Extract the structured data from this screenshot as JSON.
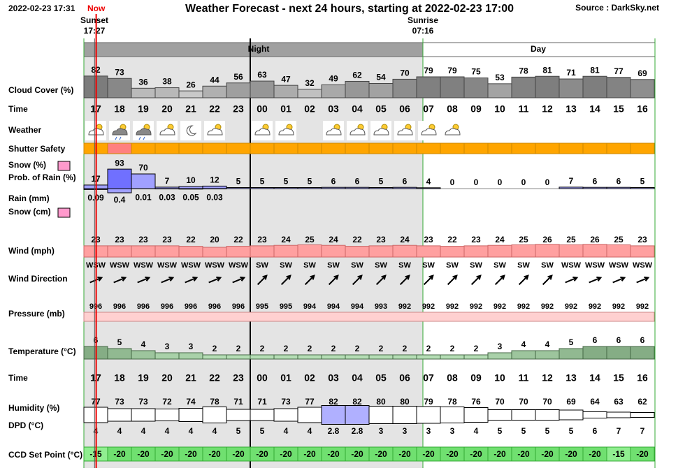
{
  "header": {
    "timestamp": "2022-02-23 17:31",
    "now_label": "Now",
    "title": "Weather Forecast - next 24 hours, starting at 2022-02-23 17:00",
    "source": "Source : DarkSky.net"
  },
  "sun": {
    "sunset_label": "Sunset",
    "sunset_time": "17:27",
    "sunrise_label": "Sunrise",
    "sunrise_time": "07:16"
  },
  "bands": {
    "night": "Night",
    "day": "Day"
  },
  "row_labels": {
    "cloud": "Cloud Cover (%)",
    "time": "Time",
    "weather": "Weather",
    "shutter": "Shutter Safety",
    "snow_pct": "Snow (%)",
    "prob_rain": "Prob. of Rain (%)",
    "rain": "Rain (mm)",
    "snow_cm": "Snow (cm)",
    "wind": "Wind (mph)",
    "wind_dir": "Wind Direction",
    "pressure": "Pressure (mb)",
    "temperature": "Temperature (°C)",
    "time2": "Time",
    "humidity": "Humidity (%)",
    "dpd": "DPD (°C)",
    "ccd": "CCD Set Point (°C)"
  },
  "hours": [
    "17",
    "18",
    "19",
    "20",
    "21",
    "22",
    "23",
    "00",
    "01",
    "02",
    "03",
    "04",
    "05",
    "06",
    "07",
    "08",
    "09",
    "10",
    "11",
    "12",
    "13",
    "14",
    "15",
    "16"
  ],
  "rows": {
    "cloud": [
      82,
      73,
      36,
      38,
      26,
      44,
      56,
      63,
      47,
      32,
      49,
      62,
      54,
      70,
      79,
      79,
      75,
      53,
      78,
      81,
      71,
      81,
      77,
      69
    ],
    "shutter_colors": [
      "#ffa500",
      "#ff8080",
      "#ffa500",
      "#ffa500",
      "#ffa500",
      "#ffa500",
      "#ffa500",
      "#ffa500",
      "#ffa500",
      "#ffa500",
      "#ffa500",
      "#ffa500",
      "#ffa500",
      "#ffa500",
      "#ffa500",
      "#ffa500",
      "#ffa500",
      "#ffa500",
      "#ffa500",
      "#ffa500",
      "#ffa500",
      "#ffa500",
      "#ffa500",
      "#ffa500"
    ],
    "prob_rain": [
      17,
      93,
      70,
      7,
      10,
      12,
      5,
      5,
      5,
      5,
      6,
      6,
      5,
      6,
      4,
      0,
      0,
      0,
      0,
      0,
      7,
      6,
      6,
      5
    ],
    "rain": [
      0.09,
      0.4,
      0.01,
      0.03,
      0.05,
      0.03
    ],
    "wind": [
      23,
      23,
      23,
      23,
      22,
      20,
      22,
      23,
      24,
      25,
      24,
      22,
      23,
      24,
      23,
      22,
      23,
      24,
      25,
      26,
      25,
      26,
      25,
      23
    ],
    "wind_dir": [
      "WSW",
      "WSW",
      "WSW",
      "WSW",
      "WSW",
      "WSW",
      "WSW",
      "SW",
      "SW",
      "SW",
      "SW",
      "SW",
      "SW",
      "SW",
      "SW",
      "SW",
      "SW",
      "SW",
      "SW",
      "SW",
      "WSW",
      "WSW",
      "WSW",
      "WSW"
    ],
    "pressure": [
      996,
      996,
      996,
      996,
      996,
      996,
      996,
      995,
      995,
      994,
      994,
      994,
      993,
      992,
      992,
      992,
      992,
      992,
      992,
      992,
      992,
      992,
      992,
      992
    ],
    "temperature": [
      6,
      5,
      4,
      3,
      3,
      2,
      2,
      2,
      2,
      2,
      2,
      2,
      2,
      2,
      2,
      2,
      2,
      3,
      4,
      4,
      5,
      6,
      6,
      6
    ],
    "humidity": [
      77,
      73,
      73,
      72,
      74,
      78,
      71,
      71,
      73,
      77,
      82,
      82,
      80,
      80,
      79,
      78,
      76,
      70,
      70,
      70,
      69,
      64,
      63,
      62
    ],
    "dpd": [
      4,
      4,
      4,
      4,
      4,
      4,
      5,
      5,
      4,
      4,
      2.8,
      2.8,
      3,
      3,
      3,
      3,
      4,
      5,
      5,
      5,
      5,
      6,
      7,
      7
    ],
    "ccd": [
      -15,
      -20,
      -20,
      -20,
      -20,
      -20,
      -20,
      -20,
      -20,
      -20,
      -20,
      -20,
      -20,
      -20,
      -20,
      -20,
      -20,
      -20,
      -20,
      -20,
      -20,
      -20,
      -15,
      -20
    ]
  }
}
